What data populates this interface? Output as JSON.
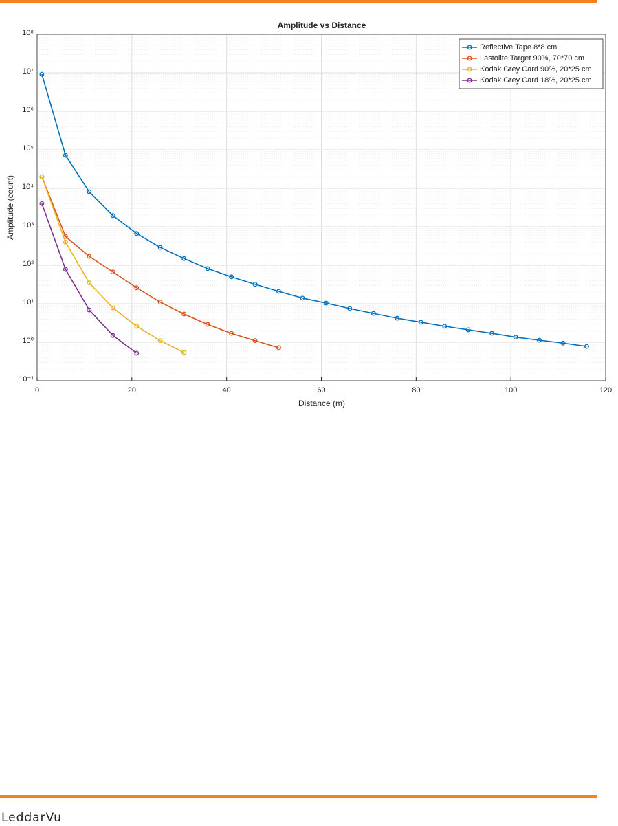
{
  "chart_data": {
    "type": "line",
    "title": "Amplitude vs Distance",
    "x_label": "Distance (m)",
    "y_label": "Amplitude (count)",
    "log_y": true,
    "grid": true,
    "legend": "upper right",
    "xlim": [
      0,
      120
    ],
    "xticks": [
      0,
      20,
      40,
      60,
      80,
      100,
      120
    ],
    "ylim": [
      0.1,
      100000000
    ],
    "yticks": [
      {
        "value": 0.1,
        "label": "10⁻¹"
      },
      {
        "value": 1,
        "label": "10⁰"
      },
      {
        "value": 10,
        "label": "10¹"
      },
      {
        "value": 100,
        "label": "10²"
      },
      {
        "value": 1000,
        "label": "10³"
      },
      {
        "value": 10000,
        "label": "10⁴"
      },
      {
        "value": 100000,
        "label": "10⁵"
      },
      {
        "value": 1000000,
        "label": "10⁶"
      },
      {
        "value": 10000000,
        "label": "10⁷"
      },
      {
        "value": 100000000,
        "label": "10⁸"
      }
    ],
    "x": [
      1,
      6,
      11,
      16,
      21,
      26,
      31,
      36,
      41,
      46,
      51,
      56,
      61,
      66,
      71,
      76,
      81,
      86,
      91,
      96,
      101,
      106,
      111,
      116
    ],
    "series": [
      {
        "name": "Reflective Tape 8*8 cm",
        "color": "#0072bd",
        "values": [
          9200000,
          72000,
          8100,
          1950,
          670,
          290,
          150,
          82,
          50,
          32,
          21,
          14,
          10.4,
          7.5,
          5.6,
          4.2,
          3.3,
          2.6,
          2.1,
          1.7,
          1.35,
          1.13,
          0.95,
          0.78
        ]
      },
      {
        "name": "Lastolite Target 90%, 70*70 cm",
        "color": "#d95319",
        "values": [
          20000,
          560,
          170,
          67,
          26,
          11,
          5.4,
          2.9,
          1.7,
          1.1,
          0.72,
          null,
          null,
          null,
          null,
          null,
          null,
          null,
          null,
          null,
          null,
          null,
          null,
          null
        ]
      },
      {
        "name": "Kodak Grey Card 90%, 20*25 cm",
        "color": "#edb120",
        "values": [
          20000,
          400,
          35,
          7.8,
          2.6,
          1.1,
          0.54,
          null,
          null,
          null,
          null,
          null,
          null,
          null,
          null,
          null,
          null,
          null,
          null,
          null,
          null,
          null,
          null,
          null
        ]
      },
      {
        "name": "Kodak Grey Card 18%, 20*25 cm",
        "color": "#7e2f8e",
        "values": [
          4000,
          78,
          6.9,
          1.5,
          0.52,
          null,
          null,
          null,
          null,
          null,
          null,
          null,
          null,
          null,
          null,
          null,
          null,
          null,
          null,
          null,
          null,
          null,
          null,
          null
        ]
      }
    ]
  },
  "footer": {
    "logo": "LeddarVu"
  }
}
